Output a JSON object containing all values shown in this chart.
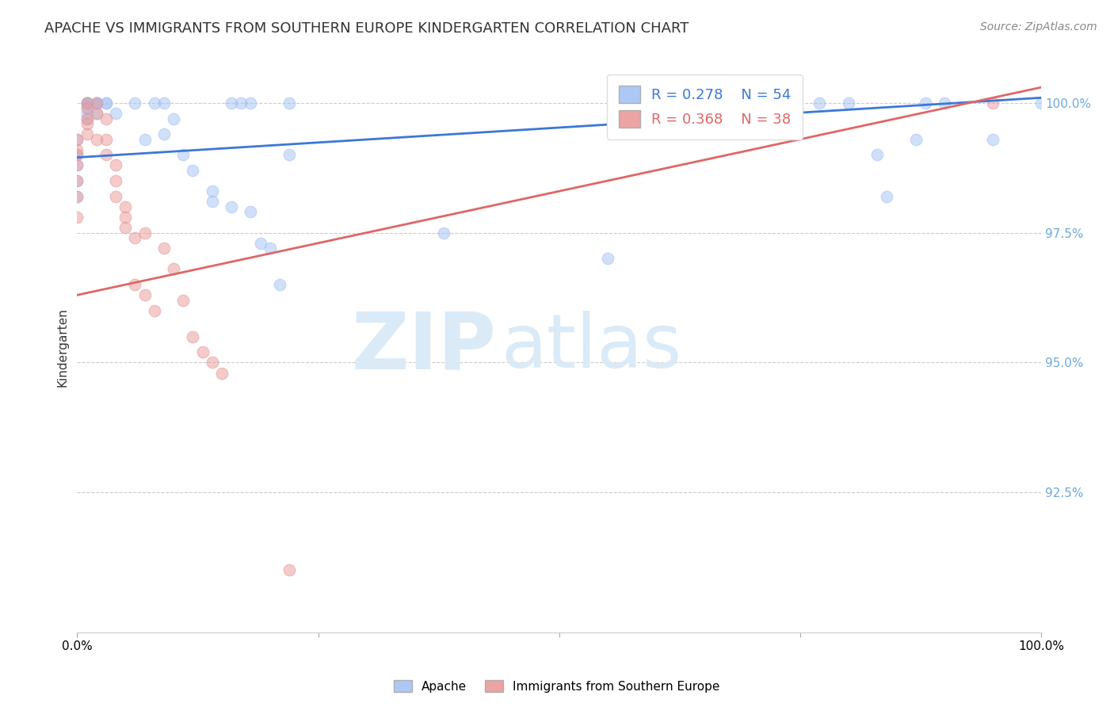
{
  "title": "APACHE VS IMMIGRANTS FROM SOUTHERN EUROPE KINDERGARTEN CORRELATION CHART",
  "source_text": "Source: ZipAtlas.com",
  "ylabel": "Kindergarten",
  "ytick_labels": [
    "100.0%",
    "97.5%",
    "95.0%",
    "92.5%"
  ],
  "ytick_values": [
    1.0,
    0.975,
    0.95,
    0.925
  ],
  "xlim": [
    0.0,
    1.0
  ],
  "ylim": [
    0.898,
    1.008
  ],
  "legend_R1": "R = 0.278",
  "legend_N1": "N = 54",
  "legend_R2": "R = 0.368",
  "legend_N2": "N = 38",
  "blue_color": "#a4c2f4",
  "pink_color": "#ea9999",
  "blue_line_color": "#3c78d8",
  "pink_line_color": "#e06666",
  "ytick_color": "#6fa8dc",
  "watermark_zip": "ZIP",
  "watermark_atlas": "atlas",
  "watermark_color": "#daeaf7",
  "background_color": "#ffffff",
  "grid_color": "#c0c0c0",
  "blue_scatter_x": [
    0.0,
    0.0,
    0.0,
    0.0,
    0.0,
    0.01,
    0.01,
    0.01,
    0.01,
    0.01,
    0.01,
    0.01,
    0.02,
    0.02,
    0.02,
    0.02,
    0.03,
    0.03,
    0.04,
    0.06,
    0.07,
    0.08,
    0.09,
    0.09,
    0.1,
    0.11,
    0.12,
    0.14,
    0.14,
    0.16,
    0.16,
    0.17,
    0.18,
    0.18,
    0.19,
    0.2,
    0.21,
    0.22,
    0.22,
    0.38,
    0.55,
    0.62,
    0.65,
    0.7,
    0.72,
    0.77,
    0.8,
    0.83,
    0.84,
    0.87,
    0.88,
    0.9,
    0.95,
    1.0
  ],
  "blue_scatter_y": [
    0.993,
    0.99,
    0.988,
    0.985,
    0.982,
    1.0,
    1.0,
    1.0,
    1.0,
    0.999,
    0.998,
    0.997,
    1.0,
    1.0,
    1.0,
    0.998,
    1.0,
    1.0,
    0.998,
    1.0,
    0.993,
    1.0,
    1.0,
    0.994,
    0.997,
    0.99,
    0.987,
    0.983,
    0.981,
    1.0,
    0.98,
    1.0,
    1.0,
    0.979,
    0.973,
    0.972,
    0.965,
    1.0,
    0.99,
    0.975,
    0.97,
    1.0,
    0.998,
    0.997,
    0.995,
    1.0,
    1.0,
    0.99,
    0.982,
    0.993,
    1.0,
    1.0,
    0.993,
    1.0
  ],
  "pink_scatter_x": [
    0.0,
    0.0,
    0.0,
    0.0,
    0.0,
    0.0,
    0.0,
    0.01,
    0.01,
    0.01,
    0.01,
    0.01,
    0.02,
    0.02,
    0.02,
    0.03,
    0.03,
    0.03,
    0.04,
    0.04,
    0.04,
    0.05,
    0.05,
    0.05,
    0.06,
    0.06,
    0.07,
    0.07,
    0.08,
    0.09,
    0.1,
    0.11,
    0.12,
    0.13,
    0.14,
    0.15,
    0.22,
    0.95
  ],
  "pink_scatter_y": [
    0.993,
    0.991,
    0.99,
    0.988,
    0.985,
    0.982,
    0.978,
    1.0,
    0.999,
    0.997,
    0.996,
    0.994,
    1.0,
    0.998,
    0.993,
    0.997,
    0.993,
    0.99,
    0.988,
    0.985,
    0.982,
    0.98,
    0.978,
    0.976,
    0.974,
    0.965,
    0.975,
    0.963,
    0.96,
    0.972,
    0.968,
    0.962,
    0.955,
    0.952,
    0.95,
    0.948,
    0.91,
    1.0
  ],
  "blue_line_y_start": 0.9895,
  "blue_line_y_end": 1.001,
  "pink_line_y_start": 0.963,
  "pink_line_y_end": 1.003,
  "marker_size": 110,
  "marker_alpha": 0.5,
  "title_fontsize": 13,
  "axis_label_fontsize": 11,
  "tick_label_fontsize": 11,
  "legend_fontsize": 13,
  "source_fontsize": 10
}
